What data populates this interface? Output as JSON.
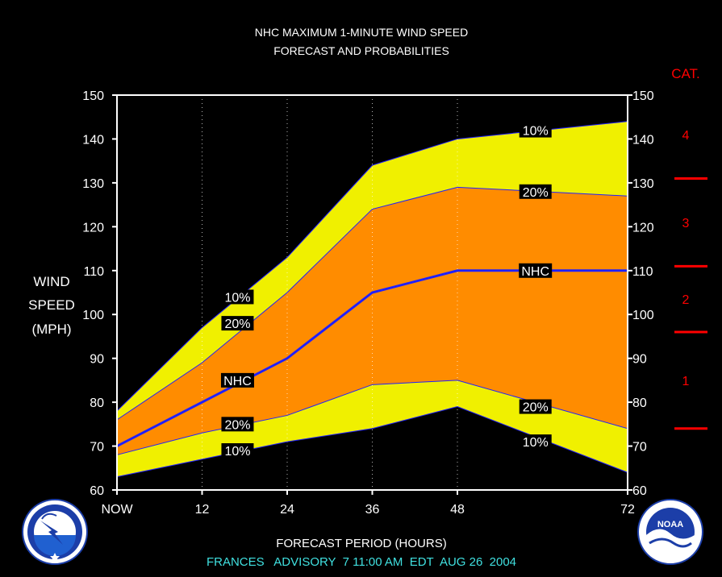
{
  "chart_data": {
    "type": "area",
    "title": "NHC MAXIMUM 1-MINUTE WIND SPEED",
    "subtitle": "FORECAST AND PROBABILITIES",
    "xlabel": "FORECAST PERIOD (HOURS)",
    "ylabel": [
      "WIND",
      "SPEED",
      "(MPH)"
    ],
    "ylim": [
      60,
      150
    ],
    "xlim": [
      0,
      72
    ],
    "x_ticks": [
      {
        "value": 0,
        "label": "NOW"
      },
      {
        "value": 12,
        "label": "12"
      },
      {
        "value": 24,
        "label": "24"
      },
      {
        "value": 36,
        "label": "36"
      },
      {
        "value": 48,
        "label": "48"
      },
      {
        "value": 72,
        "label": "72"
      }
    ],
    "y_ticks": [
      60,
      70,
      80,
      90,
      100,
      110,
      120,
      130,
      140,
      150
    ],
    "grid": "vertical dotted at forecast hours",
    "x": [
      0,
      12,
      24,
      36,
      48,
      72
    ],
    "series": [
      {
        "key": "hi10",
        "values": [
          78,
          97,
          113,
          134,
          140,
          144
        ]
      },
      {
        "key": "hi20",
        "values": [
          76,
          89,
          105,
          124,
          129,
          127
        ]
      },
      {
        "key": "nhc",
        "values": [
          70,
          80,
          90,
          105,
          110,
          110
        ]
      },
      {
        "key": "lo20",
        "values": [
          68,
          73,
          77,
          84,
          85,
          74
        ]
      },
      {
        "key": "lo10",
        "values": [
          63,
          67,
          71,
          74,
          79,
          64
        ]
      }
    ],
    "labels": [
      {
        "text": "10%",
        "x": 17,
        "y": 104,
        "series": "hi10"
      },
      {
        "text": "20%",
        "x": 17,
        "y": 98,
        "series": "hi20"
      },
      {
        "text": "NHC",
        "x": 17,
        "y": 85,
        "series": "nhc"
      },
      {
        "text": "20%",
        "x": 17,
        "y": 75,
        "series": "lo20"
      },
      {
        "text": "10%",
        "x": 17,
        "y": 69,
        "series": "lo10"
      },
      {
        "text": "10%",
        "x": 59,
        "y": 142,
        "series": "hi10"
      },
      {
        "text": "20%",
        "x": 59,
        "y": 128,
        "series": "hi20"
      },
      {
        "text": "NHC",
        "x": 59,
        "y": 110,
        "series": "nhc"
      },
      {
        "text": "20%",
        "x": 59,
        "y": 79,
        "series": "lo20"
      },
      {
        "text": "10%",
        "x": 59,
        "y": 71,
        "series": "lo10"
      }
    ],
    "categories_scale": {
      "title": "CAT.",
      "boundaries_mph": [
        74,
        96,
        111,
        131
      ],
      "labels": [
        {
          "text": "1",
          "y": 85
        },
        {
          "text": "2",
          "y": 103.5
        },
        {
          "text": "3",
          "y": 121
        },
        {
          "text": "4",
          "y": 141
        }
      ]
    },
    "colors": {
      "outer_band": "#f0f000",
      "inner_band": "#ff8c00",
      "nhc_line": "#2020ff",
      "band_edge": "#2020ff",
      "text": "#ffffff",
      "category": "#ff0000",
      "footer": "#40e0e0",
      "background": "#000000"
    },
    "footer": "FRANCES   ADVISORY  7 11:00 AM  EDT  AUG 26  2004"
  },
  "logos": {
    "left": {
      "name": "national-weather-service-logo",
      "text": "NATIONAL WEATHER SERVICE"
    },
    "right": {
      "name": "noaa-logo",
      "text": "NOAA",
      "ring_text": "U.S. DEPARTMENT OF COMMERCE"
    }
  }
}
